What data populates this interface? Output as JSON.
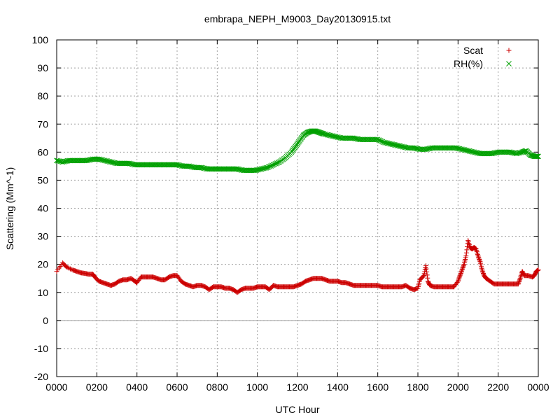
{
  "chart_data": {
    "type": "scatter",
    "title": "embrapa_NEPH_M9003_Day20130915.txt",
    "xlabel": "UTC Hour",
    "ylabel": "Scattering (Mm^-1)",
    "xlim": [
      0,
      24
    ],
    "ylim": [
      -20,
      100
    ],
    "x_ticks": [
      0,
      2,
      4,
      6,
      8,
      10,
      12,
      14,
      16,
      18,
      20,
      22,
      24
    ],
    "x_tick_labels": [
      "0000",
      "0200",
      "0400",
      "0600",
      "0800",
      "1000",
      "1200",
      "1400",
      "1600",
      "1800",
      "2000",
      "2200",
      "0000"
    ],
    "y_ticks": [
      -20,
      -10,
      0,
      10,
      20,
      30,
      40,
      50,
      60,
      70,
      80,
      90,
      100
    ],
    "y_tick_labels": [
      "-20",
      "-10",
      "0",
      "10",
      "20",
      "30",
      "40",
      "50",
      "60",
      "70",
      "80",
      "90",
      "100"
    ],
    "grid": true,
    "zero_line": true,
    "legend_position": "top-right",
    "series": [
      {
        "name": "Scat",
        "marker": "+",
        "color": "#cc0000",
        "points": [
          [
            0.0,
            17.5
          ],
          [
            0.3,
            20.5
          ],
          [
            0.5,
            19
          ],
          [
            0.8,
            18
          ],
          [
            1.0,
            17.5
          ],
          [
            1.2,
            17
          ],
          [
            1.4,
            16.8
          ],
          [
            1.6,
            16.5
          ],
          [
            1.8,
            16.5
          ],
          [
            1.9,
            15.5
          ],
          [
            2.1,
            14
          ],
          [
            2.3,
            13.5
          ],
          [
            2.5,
            13
          ],
          [
            2.7,
            12.5
          ],
          [
            2.9,
            13
          ],
          [
            3.1,
            14
          ],
          [
            3.3,
            14.5
          ],
          [
            3.5,
            14.5
          ],
          [
            3.7,
            15
          ],
          [
            3.9,
            14
          ],
          [
            4.0,
            13.5
          ],
          [
            4.2,
            15.5
          ],
          [
            4.4,
            15.5
          ],
          [
            4.6,
            15.5
          ],
          [
            4.8,
            15.5
          ],
          [
            5.0,
            15
          ],
          [
            5.2,
            14.5
          ],
          [
            5.4,
            14.5
          ],
          [
            5.6,
            15.5
          ],
          [
            5.8,
            16
          ],
          [
            6.0,
            16
          ],
          [
            6.2,
            14
          ],
          [
            6.4,
            13
          ],
          [
            6.6,
            12.5
          ],
          [
            6.8,
            12
          ],
          [
            7.0,
            12.5
          ],
          [
            7.2,
            12.5
          ],
          [
            7.4,
            12
          ],
          [
            7.6,
            11
          ],
          [
            7.8,
            12
          ],
          [
            8.0,
            12
          ],
          [
            8.2,
            12
          ],
          [
            8.4,
            11.5
          ],
          [
            8.6,
            11.5
          ],
          [
            8.8,
            11
          ],
          [
            9.0,
            10
          ],
          [
            9.2,
            11
          ],
          [
            9.4,
            11.5
          ],
          [
            9.6,
            11.5
          ],
          [
            9.8,
            11.5
          ],
          [
            10.0,
            12
          ],
          [
            10.2,
            12
          ],
          [
            10.4,
            12
          ],
          [
            10.6,
            11
          ],
          [
            10.8,
            12.5
          ],
          [
            11.0,
            12
          ],
          [
            11.2,
            12
          ],
          [
            11.4,
            12
          ],
          [
            11.6,
            12
          ],
          [
            11.8,
            12
          ],
          [
            12.0,
            12.5
          ],
          [
            12.2,
            13
          ],
          [
            12.4,
            14
          ],
          [
            12.6,
            14.5
          ],
          [
            12.8,
            15
          ],
          [
            13.0,
            15
          ],
          [
            13.2,
            15
          ],
          [
            13.4,
            14.5
          ],
          [
            13.6,
            14
          ],
          [
            13.8,
            14
          ],
          [
            14.0,
            14
          ],
          [
            14.2,
            13.5
          ],
          [
            14.4,
            13.5
          ],
          [
            14.6,
            13
          ],
          [
            14.8,
            12.5
          ],
          [
            15.0,
            12.5
          ],
          [
            15.2,
            12.5
          ],
          [
            15.4,
            12.5
          ],
          [
            15.6,
            12.5
          ],
          [
            15.8,
            12.5
          ],
          [
            16.0,
            12.5
          ],
          [
            16.2,
            12
          ],
          [
            16.4,
            12
          ],
          [
            16.6,
            12
          ],
          [
            16.8,
            12
          ],
          [
            17.0,
            12
          ],
          [
            17.2,
            12
          ],
          [
            17.4,
            12.5
          ],
          [
            17.6,
            11.5
          ],
          [
            17.8,
            11
          ],
          [
            18.0,
            11.5
          ],
          [
            18.1,
            14.5
          ],
          [
            18.3,
            16
          ],
          [
            18.4,
            19.5
          ],
          [
            18.5,
            14
          ],
          [
            18.6,
            12.5
          ],
          [
            18.8,
            12
          ],
          [
            19.0,
            12
          ],
          [
            19.2,
            12
          ],
          [
            19.4,
            12
          ],
          [
            19.6,
            12
          ],
          [
            19.8,
            12
          ],
          [
            20.0,
            14
          ],
          [
            20.1,
            16
          ],
          [
            20.2,
            18
          ],
          [
            20.3,
            20
          ],
          [
            20.4,
            23
          ],
          [
            20.5,
            28.5
          ],
          [
            20.6,
            26
          ],
          [
            20.7,
            25.5
          ],
          [
            20.8,
            26
          ],
          [
            20.9,
            25.5
          ],
          [
            21.0,
            23
          ],
          [
            21.1,
            21
          ],
          [
            21.2,
            18
          ],
          [
            21.3,
            16
          ],
          [
            21.4,
            15
          ],
          [
            21.6,
            14
          ],
          [
            21.8,
            13
          ],
          [
            22.0,
            13
          ],
          [
            22.2,
            13
          ],
          [
            22.4,
            13
          ],
          [
            22.6,
            13
          ],
          [
            22.8,
            13
          ],
          [
            23.0,
            13
          ],
          [
            23.1,
            15
          ],
          [
            23.2,
            17.5
          ],
          [
            23.3,
            16
          ],
          [
            23.5,
            16
          ],
          [
            23.7,
            15.5
          ],
          [
            23.8,
            16
          ],
          [
            23.9,
            17.5
          ],
          [
            24.0,
            18
          ]
        ]
      },
      {
        "name": "RH(%)",
        "marker": "x",
        "color": "#00a000",
        "points": [
          [
            0.0,
            57
          ],
          [
            0.3,
            56.5
          ],
          [
            0.6,
            57
          ],
          [
            0.9,
            57
          ],
          [
            1.2,
            57
          ],
          [
            1.5,
            57
          ],
          [
            1.8,
            57.5
          ],
          [
            2.1,
            57.5
          ],
          [
            2.4,
            57
          ],
          [
            2.7,
            56.5
          ],
          [
            3.0,
            56
          ],
          [
            3.3,
            56
          ],
          [
            3.6,
            56
          ],
          [
            3.9,
            55.5
          ],
          [
            4.2,
            55.5
          ],
          [
            4.5,
            55.5
          ],
          [
            4.8,
            55.5
          ],
          [
            5.1,
            55.5
          ],
          [
            5.4,
            55.5
          ],
          [
            5.7,
            55.5
          ],
          [
            6.0,
            55.5
          ],
          [
            6.3,
            55
          ],
          [
            6.6,
            55
          ],
          [
            6.9,
            54.5
          ],
          [
            7.2,
            54.5
          ],
          [
            7.5,
            54
          ],
          [
            7.8,
            54
          ],
          [
            8.1,
            54
          ],
          [
            8.4,
            54
          ],
          [
            8.7,
            54
          ],
          [
            9.0,
            54
          ],
          [
            9.3,
            53.5
          ],
          [
            9.6,
            53.5
          ],
          [
            9.9,
            53.5
          ],
          [
            10.2,
            54
          ],
          [
            10.5,
            54.5
          ],
          [
            10.8,
            55.5
          ],
          [
            11.1,
            56.5
          ],
          [
            11.4,
            58
          ],
          [
            11.7,
            60
          ],
          [
            11.9,
            62
          ],
          [
            12.1,
            64
          ],
          [
            12.3,
            66
          ],
          [
            12.5,
            67
          ],
          [
            12.7,
            67.5
          ],
          [
            12.9,
            67.5
          ],
          [
            13.1,
            67
          ],
          [
            13.3,
            66.5
          ],
          [
            13.6,
            66
          ],
          [
            13.9,
            65.5
          ],
          [
            14.2,
            65
          ],
          [
            14.5,
            65
          ],
          [
            14.8,
            65
          ],
          [
            15.1,
            64.5
          ],
          [
            15.4,
            64.5
          ],
          [
            15.7,
            64.5
          ],
          [
            16.0,
            64.5
          ],
          [
            16.3,
            63.5
          ],
          [
            16.6,
            63
          ],
          [
            16.9,
            62.5
          ],
          [
            17.2,
            62
          ],
          [
            17.5,
            61.5
          ],
          [
            17.8,
            61.5
          ],
          [
            18.1,
            61
          ],
          [
            18.4,
            61
          ],
          [
            18.7,
            61.5
          ],
          [
            19.0,
            61.5
          ],
          [
            19.3,
            61.5
          ],
          [
            19.6,
            61.5
          ],
          [
            19.9,
            61.5
          ],
          [
            20.2,
            61
          ],
          [
            20.5,
            60.5
          ],
          [
            20.8,
            60
          ],
          [
            21.1,
            59.5
          ],
          [
            21.4,
            59.5
          ],
          [
            21.7,
            59.5
          ],
          [
            22.0,
            60
          ],
          [
            22.3,
            60
          ],
          [
            22.6,
            60
          ],
          [
            22.9,
            59.5
          ],
          [
            23.2,
            60
          ],
          [
            23.4,
            60.5
          ],
          [
            23.6,
            59
          ],
          [
            23.8,
            58.5
          ],
          [
            24.0,
            58.5
          ]
        ]
      }
    ]
  }
}
